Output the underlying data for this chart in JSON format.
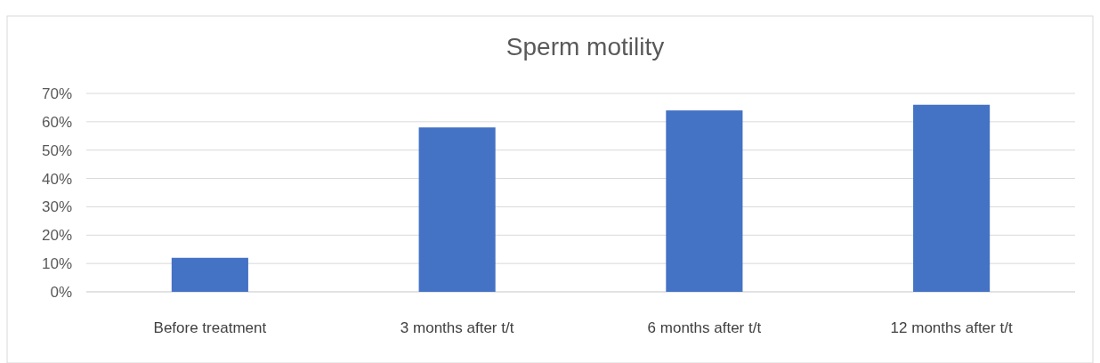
{
  "chart_data": {
    "type": "bar",
    "title": "Sperm motility",
    "categories": [
      "Before treatment",
      "3 months after t/t",
      "6 months after t/t",
      "12 months after t/t"
    ],
    "values": [
      12,
      58,
      64,
      66
    ],
    "color": "#4472c4",
    "ylim": [
      0,
      70
    ],
    "yticks": [
      {
        "value": 0,
        "label": "0%"
      },
      {
        "value": 10,
        "label": "10%"
      },
      {
        "value": 20,
        "label": "20%"
      },
      {
        "value": 30,
        "label": "30%"
      },
      {
        "value": 40,
        "label": "40%"
      },
      {
        "value": 50,
        "label": "50%"
      },
      {
        "value": 60,
        "label": "60%"
      },
      {
        "value": 70,
        "label": "70%"
      }
    ],
    "grid": "y"
  }
}
